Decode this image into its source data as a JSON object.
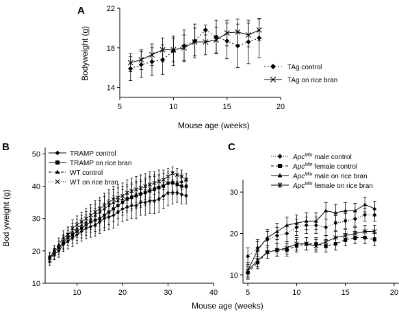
{
  "chart_data": [
    {
      "panel": "A",
      "type": "line",
      "xlabel": "Mouse age (weeks)",
      "ylabel": "Bodyweight (g)",
      "xlim": [
        5,
        20
      ],
      "ylim": [
        13,
        22
      ],
      "xticks": [
        5,
        10,
        15,
        20
      ],
      "yticks": [
        14,
        18,
        22
      ],
      "legend_position": "right",
      "series": [
        {
          "name": "TAg control",
          "marker": "diamond",
          "dash": "2,3",
          "x": [
            6,
            7,
            8,
            9,
            10,
            11,
            12,
            13,
            14,
            15,
            16,
            17,
            18
          ],
          "y": [
            15.9,
            16.3,
            16.6,
            16.8,
            17.7,
            18.2,
            18.7,
            19.8,
            19.1,
            18.7,
            18.2,
            18.6,
            19.0
          ],
          "err": [
            1.2,
            1.3,
            1.4,
            1.5,
            1.5,
            1.6,
            1.7,
            0.5,
            1.7,
            1.8,
            2.2,
            2.2,
            2.0
          ]
        },
        {
          "name": "TAg on rice bran",
          "marker": "x",
          "dash": "0",
          "x": [
            6,
            7,
            8,
            9,
            10,
            11,
            12,
            13,
            14,
            15,
            16,
            17,
            18
          ],
          "y": [
            16.5,
            16.8,
            17.3,
            17.8,
            17.8,
            18.0,
            18.6,
            18.6,
            18.8,
            19.5,
            19.6,
            19.3,
            19.8
          ],
          "err": [
            0.9,
            1.0,
            1.1,
            1.2,
            1.2,
            1.3,
            1.4,
            1.3,
            1.3,
            1.3,
            1.3,
            1.2,
            1.1
          ]
        }
      ]
    },
    {
      "panel": "B",
      "type": "line",
      "xlabel": "Mouse age (weeks)",
      "ylabel": "Body weight (g)",
      "xlim": [
        3,
        40
      ],
      "ylim": [
        10,
        52
      ],
      "xticks": [
        10,
        20,
        30,
        40
      ],
      "yticks": [
        10,
        20,
        30,
        40,
        50
      ],
      "legend_position": "top-left",
      "series": [
        {
          "name": "TRAMP control",
          "marker": "diamond",
          "dash": "0",
          "x": [
            4,
            5,
            6,
            7,
            8,
            9,
            10,
            11,
            12,
            13,
            14,
            15,
            16,
            17,
            18,
            19,
            20,
            21,
            22,
            23,
            24,
            25,
            26,
            27,
            28,
            29,
            30,
            31,
            32,
            33,
            34
          ],
          "y": [
            18,
            19,
            20,
            22,
            23,
            24,
            25,
            26,
            27,
            27.5,
            28,
            29,
            30,
            30.5,
            31,
            32,
            33,
            33.5,
            34,
            34,
            35,
            35,
            35.5,
            35.5,
            36,
            37,
            38,
            38,
            38,
            37.5,
            37
          ],
          "err": [
            1.5,
            1.7,
            2,
            2.2,
            2.4,
            2.6,
            2.8,
            3,
            3.2,
            3.3,
            3.5,
            3.6,
            3.8,
            3.9,
            4,
            4,
            4,
            4,
            4,
            4,
            4,
            4,
            4,
            4,
            4,
            4,
            4,
            3.5,
            3,
            3,
            2.5
          ]
        },
        {
          "name": "TRAMP on rice bran",
          "marker": "square",
          "dash": "0",
          "x": [
            4,
            5,
            6,
            7,
            8,
            9,
            10,
            11,
            12,
            13,
            14,
            15,
            16,
            17,
            18,
            19,
            20,
            21,
            22,
            23,
            24,
            25,
            26,
            27,
            28,
            29,
            30,
            31,
            32,
            33,
            34
          ],
          "y": [
            18,
            20,
            21,
            22.5,
            24,
            25,
            26,
            27,
            28,
            29,
            29.5,
            30,
            31,
            32,
            33,
            34,
            35,
            36,
            36.5,
            37,
            37.5,
            38,
            38.5,
            39,
            39.5,
            40,
            41,
            41,
            40.5,
            40,
            40
          ],
          "err": [
            1.5,
            1.7,
            2,
            2.2,
            2.4,
            2.6,
            2.8,
            3,
            3.2,
            3.3,
            3.5,
            3.6,
            3.8,
            3.9,
            4,
            4,
            4,
            4,
            4,
            4,
            4,
            4,
            4,
            4,
            4,
            4,
            3.5,
            3.5,
            3,
            3,
            2.5
          ]
        },
        {
          "name": "WT control",
          "marker": "triangle",
          "dash": "4,2,1,2",
          "x": [
            4,
            5,
            6,
            7,
            8,
            9,
            10,
            11,
            12,
            13,
            14,
            15,
            16,
            17,
            18,
            19,
            20,
            21,
            22,
            23,
            24,
            25,
            26,
            27,
            28,
            29,
            30,
            31,
            32,
            33,
            34
          ],
          "y": [
            18,
            20,
            22,
            24,
            25,
            26,
            27,
            28,
            29,
            30,
            31,
            32,
            33,
            34,
            35,
            35.5,
            36,
            36.5,
            37,
            37.5,
            38,
            38.5,
            39,
            39.5,
            40,
            40.5,
            41,
            41.5,
            41,
            41.5,
            42
          ],
          "err": [
            1.5,
            1.7,
            2,
            2.2,
            2.4,
            2.6,
            2.8,
            3,
            3.2,
            3.3,
            3.5,
            3.6,
            3.8,
            3.9,
            4,
            4,
            4,
            4,
            4,
            4,
            4,
            4,
            4,
            4,
            3.5,
            3.5,
            3,
            3,
            2.5,
            2.5,
            2
          ]
        },
        {
          "name": "WT on rice bran",
          "marker": "x",
          "dash": "1,2",
          "x": [
            4,
            5,
            6,
            7,
            8,
            9,
            10,
            11,
            12,
            13,
            14,
            15,
            16,
            17,
            18,
            19,
            20,
            21,
            22,
            23,
            24,
            25,
            26,
            27,
            28,
            29,
            30,
            31,
            32,
            33,
            34
          ],
          "y": [
            17,
            19,
            21,
            23,
            25,
            27,
            28,
            29,
            30,
            31,
            32,
            33,
            34,
            35,
            36,
            36.5,
            37,
            38,
            38.5,
            39,
            39.5,
            40,
            40.5,
            41,
            41.5,
            42,
            43,
            44,
            43.5,
            43,
            42
          ],
          "err": [
            1.5,
            1.7,
            2,
            2.2,
            2.4,
            2.6,
            2.8,
            3,
            3.2,
            3.3,
            3.5,
            3.6,
            3.8,
            3.9,
            4,
            4,
            4,
            4,
            4,
            4,
            4,
            4,
            4,
            3.5,
            3.5,
            3,
            2.5,
            2,
            2,
            2,
            2
          ]
        }
      ]
    },
    {
      "panel": "C",
      "type": "line",
      "xlabel": "",
      "ylabel": "",
      "xlim": [
        4.5,
        20.5
      ],
      "ylim": [
        8,
        33
      ],
      "xticks": [
        5,
        10,
        15,
        20
      ],
      "yticks": [
        10,
        20,
        30
      ],
      "legend_position": "top-left",
      "series": [
        {
          "name_main": "Apc",
          "name_sup": "Min",
          "name_rest": " male control",
          "marker": "diamond",
          "dash": "1,2",
          "x": [
            5,
            6,
            7,
            8,
            9,
            10,
            11,
            12,
            13,
            14,
            15,
            16,
            17,
            18
          ],
          "y": [
            14.5,
            16.5,
            18.5,
            19.5,
            20,
            21.5,
            22,
            22,
            21.5,
            22.5,
            23,
            23.5,
            24.5,
            24.5
          ],
          "err": [
            2,
            2,
            2,
            2,
            2,
            2,
            2,
            2,
            2,
            1.8,
            1.8,
            1.8,
            1.5,
            1.5
          ]
        },
        {
          "name_main": "Apc",
          "name_sup": "Min",
          "name_rest": " female control",
          "marker": "square",
          "dash": "4,3",
          "x": [
            5,
            6,
            7,
            8,
            9,
            10,
            11,
            12,
            13,
            14,
            15,
            16,
            17,
            18
          ],
          "y": [
            10.5,
            13,
            15.5,
            16,
            16,
            17,
            17.5,
            17.5,
            17,
            17.5,
            18.5,
            19,
            19,
            18.5
          ],
          "err": [
            1.5,
            1.5,
            1.5,
            1.5,
            1.5,
            1.5,
            1.5,
            1.5,
            1.5,
            1.5,
            1.5,
            1.5,
            1.5,
            1.5
          ]
        },
        {
          "name_main": "Apc",
          "name_sup": "Min",
          "name_rest": " male on rice bran",
          "marker": "triangle",
          "dash": "0",
          "x": [
            5,
            6,
            7,
            8,
            9,
            10,
            11,
            12,
            13,
            14,
            15,
            16,
            17,
            18
          ],
          "y": [
            11,
            16,
            19,
            20.5,
            22,
            22.5,
            23,
            23,
            25.5,
            25,
            25.5,
            25.5,
            27,
            26
          ],
          "err": [
            2,
            2,
            2,
            2,
            2,
            2,
            2,
            2,
            2,
            2,
            2,
            1.8,
            1.8,
            1.8
          ]
        },
        {
          "name_main": "Apc",
          "name_sup": "Min",
          "name_rest": " female on rice bran",
          "marker": "asterisk",
          "dash": "0",
          "x": [
            5,
            6,
            7,
            8,
            9,
            10,
            11,
            12,
            13,
            14,
            15,
            16,
            17,
            18
          ],
          "y": [
            11,
            13.5,
            15.5,
            16,
            16.5,
            17.5,
            17.5,
            17,
            18,
            19,
            19.5,
            20,
            20.5,
            20.5
          ],
          "err": [
            1.5,
            1.5,
            1.5,
            1.5,
            1.5,
            1.5,
            1.5,
            1.5,
            1.5,
            1.5,
            1.5,
            1.5,
            1.5,
            1.5
          ]
        }
      ]
    }
  ],
  "shared": {
    "bottom_xlabel": "Mouse age (weeks)"
  }
}
